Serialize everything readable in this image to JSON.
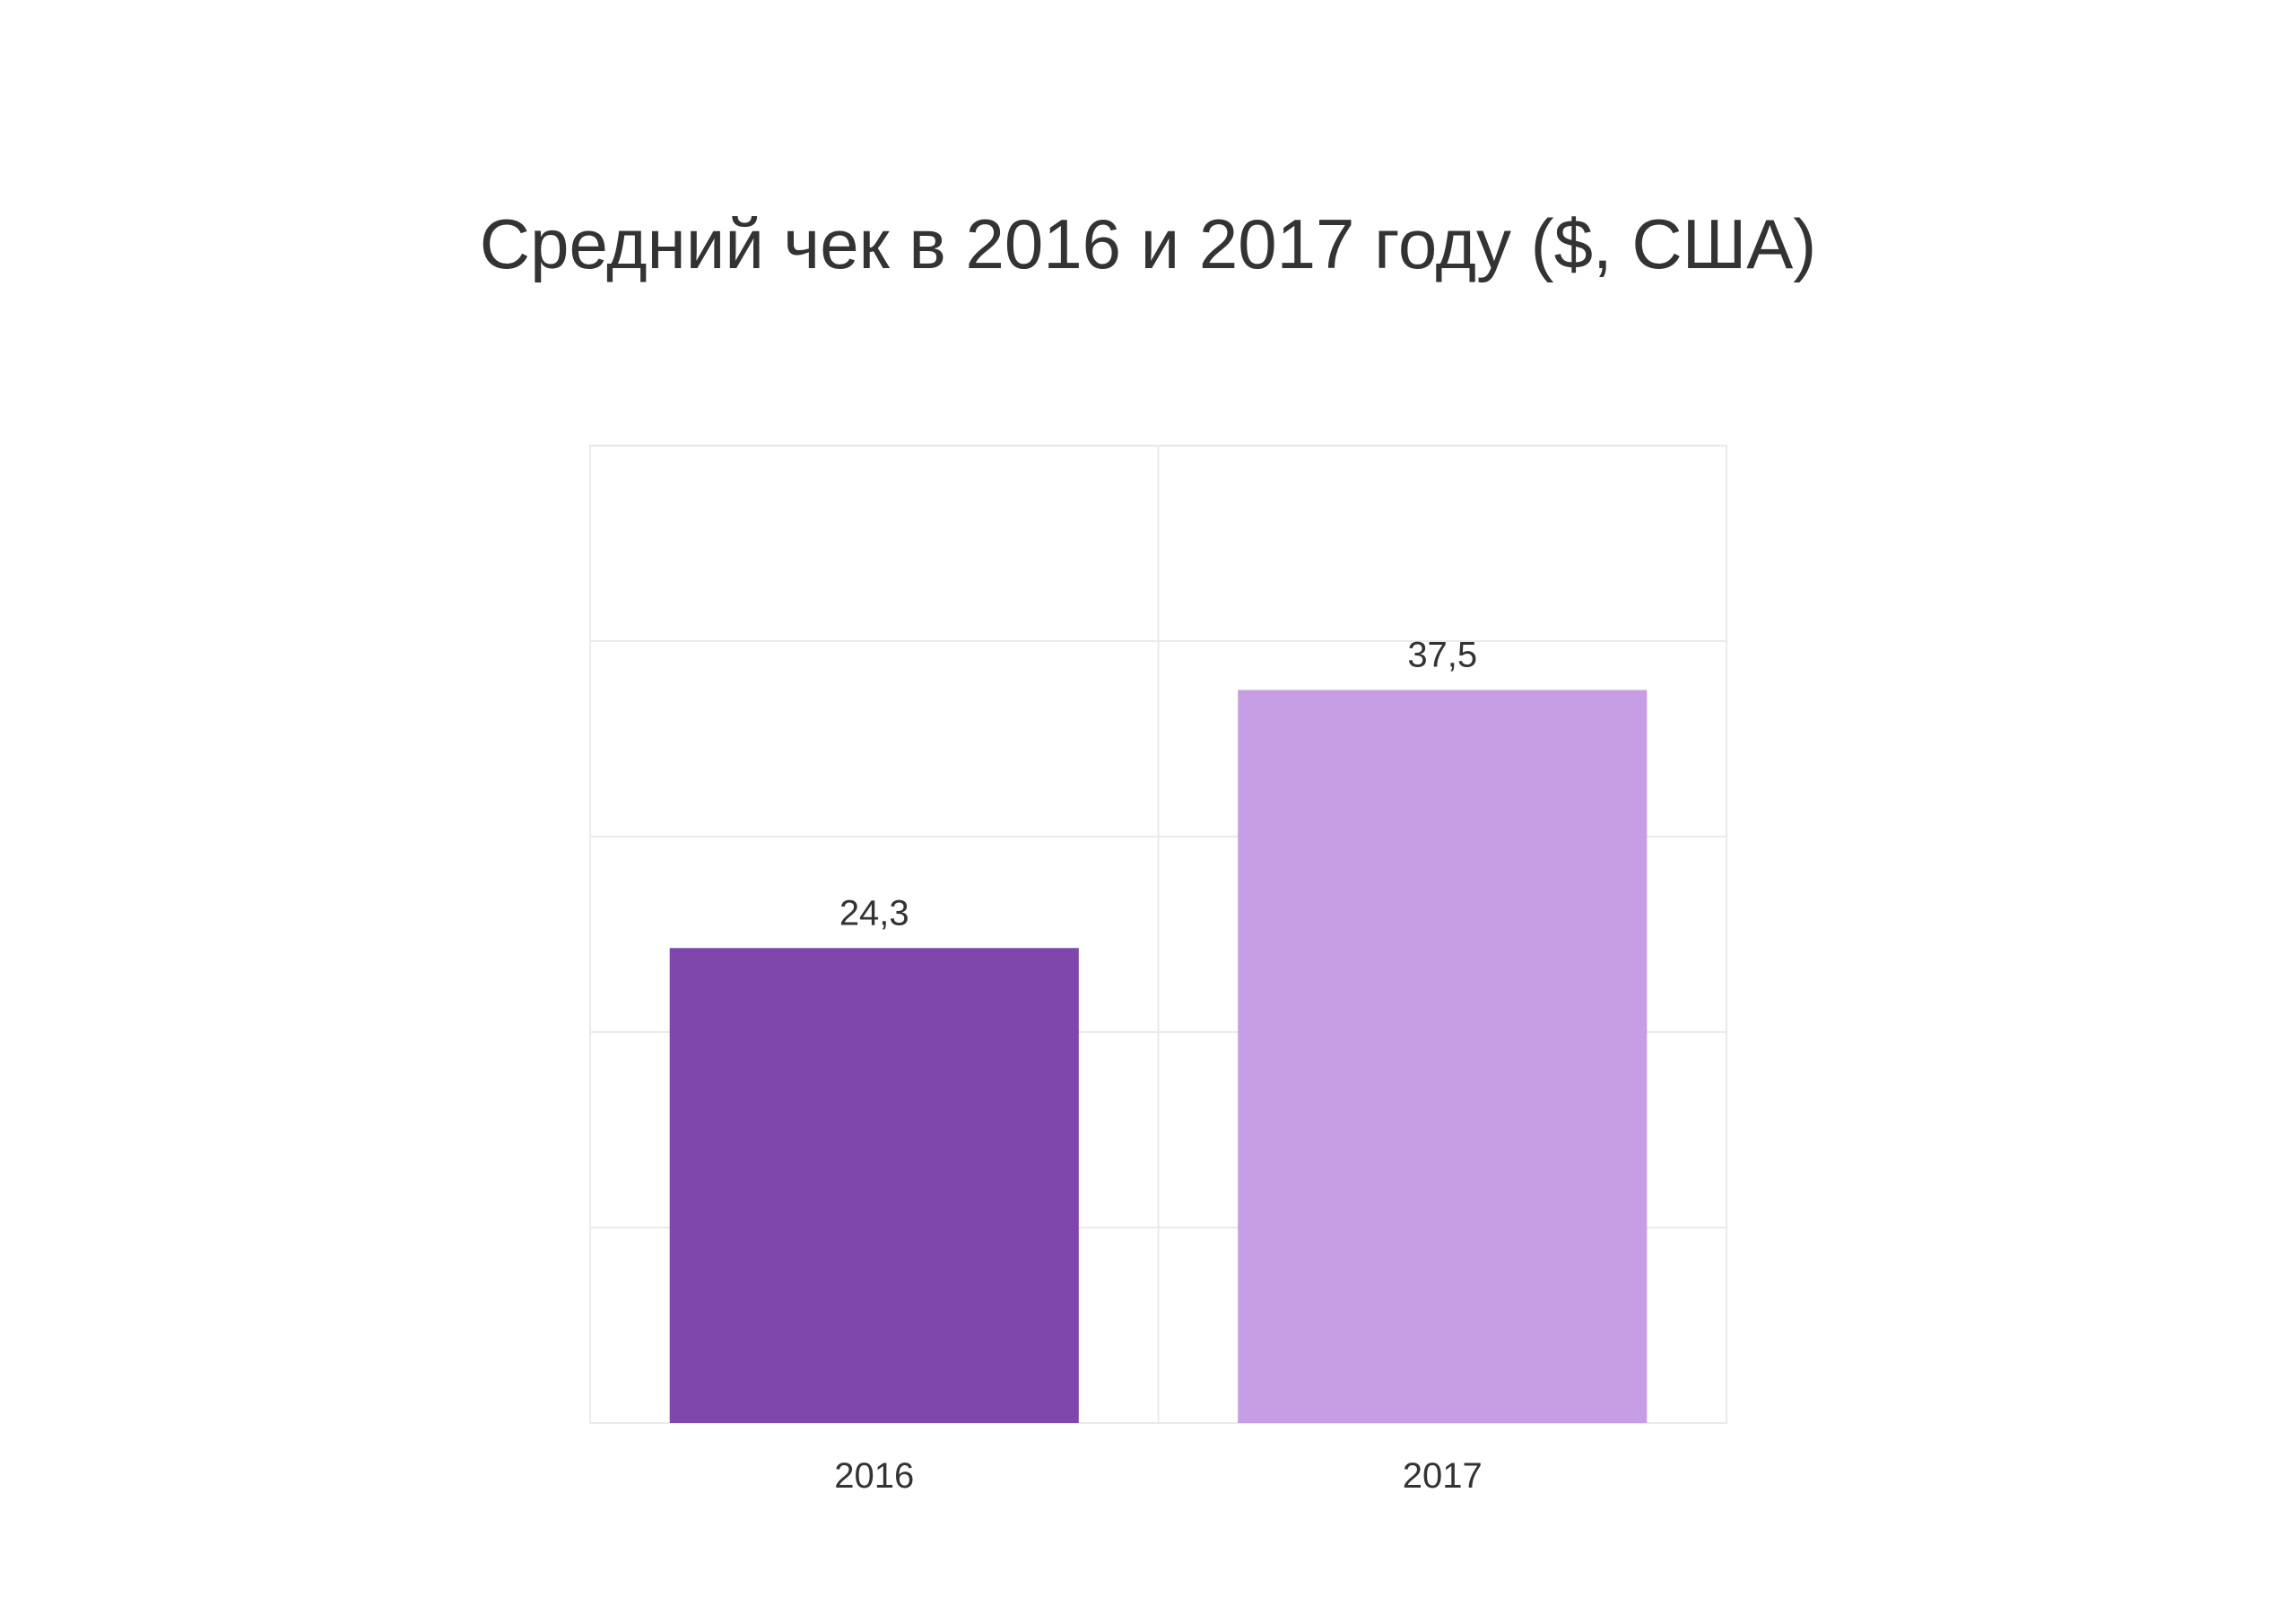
{
  "chart_data": {
    "type": "bar",
    "title": "Средний чек в 2016 и 2017 году ($, США)",
    "categories": [
      "2016",
      "2017"
    ],
    "values": [
      24.3,
      37.5
    ],
    "data_labels": [
      "24,3",
      "37,5"
    ],
    "colors": [
      "#7f47ab",
      "#c79ee3"
    ],
    "ylim": [
      0,
      50
    ],
    "y_gridlines": [
      10,
      20,
      30,
      40,
      50
    ],
    "grid": true,
    "grid_color": "#eaeaea",
    "legend": "none",
    "xlabel": "",
    "ylabel": ""
  }
}
